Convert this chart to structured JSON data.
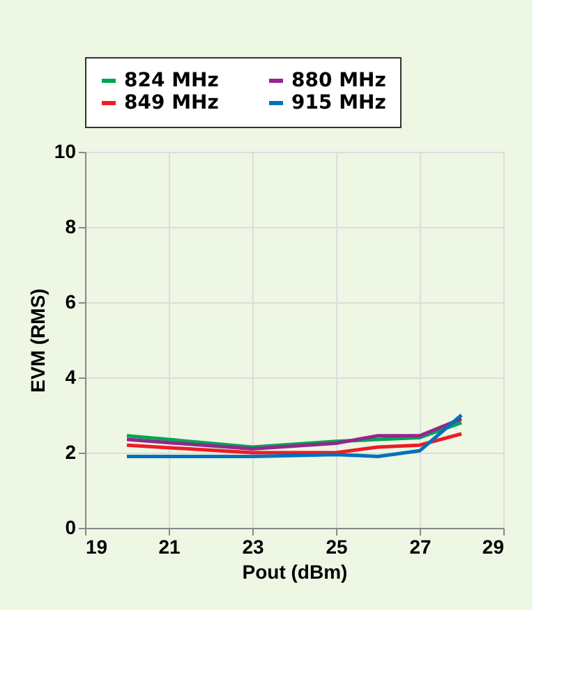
{
  "chart_data": {
    "type": "line",
    "x": [
      20,
      23,
      25,
      26,
      27,
      28
    ],
    "series": [
      {
        "name": "824 MHz",
        "color": "#00a651",
        "values": [
          2.45,
          2.15,
          2.3,
          2.35,
          2.4,
          2.8
        ]
      },
      {
        "name": "849 MHz",
        "color": "#ed1c24",
        "values": [
          2.2,
          2.0,
          2.0,
          2.15,
          2.2,
          2.5
        ]
      },
      {
        "name": "880 MHz",
        "color": "#92278f",
        "values": [
          2.35,
          2.1,
          2.25,
          2.45,
          2.45,
          2.9
        ]
      },
      {
        "name": "915 MHz",
        "color": "#0072bc",
        "values": [
          1.9,
          1.9,
          1.95,
          1.9,
          2.05,
          3.0
        ]
      }
    ],
    "xlabel": "Pout (dBm)",
    "ylabel": "EVM (RMS)",
    "xlim": [
      19,
      29
    ],
    "xticks": [
      19,
      21,
      23,
      25,
      27,
      29
    ],
    "ylim": [
      0,
      10
    ],
    "yticks": [
      0,
      2,
      4,
      6,
      8,
      10
    ],
    "grid": true,
    "legend": "top",
    "line_style": "solid",
    "marker": "none"
  }
}
